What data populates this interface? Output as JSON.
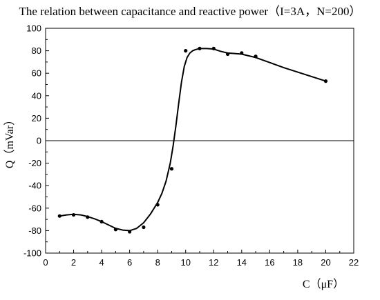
{
  "chart_data": {
    "type": "scatter",
    "title": "The relation between capacitance  and reactive power（I=3A，N=200）",
    "xlabel": "C（μF）",
    "ylabel": "Q（mVar）",
    "xlim": [
      0,
      22
    ],
    "ylim": [
      -100,
      100
    ],
    "x_ticks": [
      0,
      2,
      4,
      6,
      8,
      10,
      12,
      14,
      16,
      18,
      20,
      22
    ],
    "y_ticks": [
      -100,
      -80,
      -60,
      -40,
      -20,
      0,
      20,
      40,
      60,
      80,
      100
    ],
    "grid": false,
    "legend": "none",
    "reference_line_y": 0,
    "series": [
      {
        "kind": "points",
        "x": [
          1,
          2,
          3,
          4,
          5,
          6,
          7,
          8,
          9,
          10,
          11,
          12,
          13,
          14,
          15,
          20
        ],
        "y": [
          -67,
          -66,
          -68,
          -72,
          -79,
          -81,
          -77,
          -57,
          -25,
          80,
          82,
          82,
          77,
          78,
          75,
          53
        ]
      },
      {
        "kind": "fitted-curve",
        "x": [
          1,
          1.5,
          2,
          2.5,
          3,
          3.5,
          4,
          4.5,
          5,
          5.5,
          6,
          6.5,
          7,
          7.5,
          8,
          8.3,
          8.6,
          8.9,
          9.1,
          9.3,
          9.5,
          9.7,
          9.9,
          10.1,
          10.3,
          10.5,
          10.7,
          11,
          11.5,
          12,
          12.5,
          13,
          13.5,
          14,
          15,
          16,
          17,
          18,
          19,
          20
        ],
        "y": [
          -67,
          -66,
          -65.5,
          -66,
          -67.5,
          -69.5,
          -72,
          -75,
          -78,
          -79.5,
          -80,
          -78,
          -73,
          -65,
          -55,
          -47,
          -36,
          -20,
          -5,
          13,
          33,
          52,
          66,
          74,
          78,
          80,
          81,
          82,
          82,
          81.5,
          79.5,
          78,
          77.5,
          77,
          74,
          69.5,
          65,
          61,
          57,
          53
        ]
      }
    ]
  },
  "colors": {
    "background": "#ffffff",
    "axis": "#000000",
    "points": "#000000",
    "curve": "#000000"
  }
}
